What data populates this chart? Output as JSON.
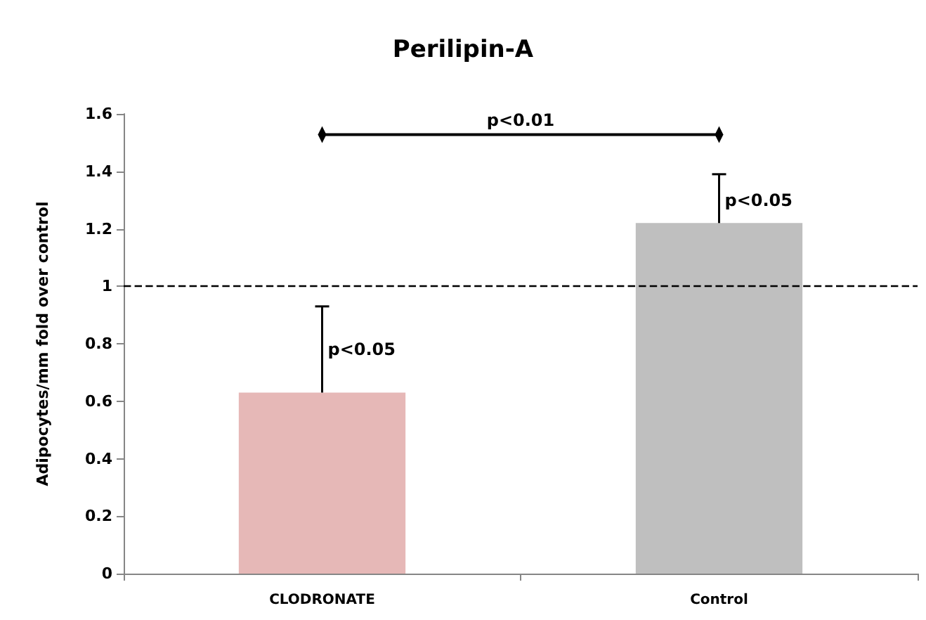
{
  "chart_data": {
    "type": "bar",
    "title": "Perilipin-A",
    "ylabel": "Adipocytes/mm fold over control",
    "categories": [
      "CLODRONATE",
      "Control"
    ],
    "values": [
      0.63,
      1.22
    ],
    "colors": [
      "#e6b8b7",
      "#bfbfbf"
    ],
    "errors": [
      [
        0.63,
        0.93
      ],
      [
        1.22,
        1.39
      ]
    ],
    "ylim": [
      0,
      1.6
    ],
    "yticks": [
      0,
      0.2,
      0.4,
      0.6,
      0.8,
      1,
      1.2,
      1.4,
      1.6
    ],
    "grid": false,
    "ref_lines": [
      {
        "axis": "y",
        "value": 1,
        "color": "#000000",
        "line_style": "dashed"
      }
    ],
    "annotations": [
      {
        "text": "p<0.05",
        "x": "CLODRONATE",
        "y": 0.78
      },
      {
        "text": "p<0.05",
        "x": "Control",
        "y": 1.3
      },
      "p<0.01"
    ]
  }
}
